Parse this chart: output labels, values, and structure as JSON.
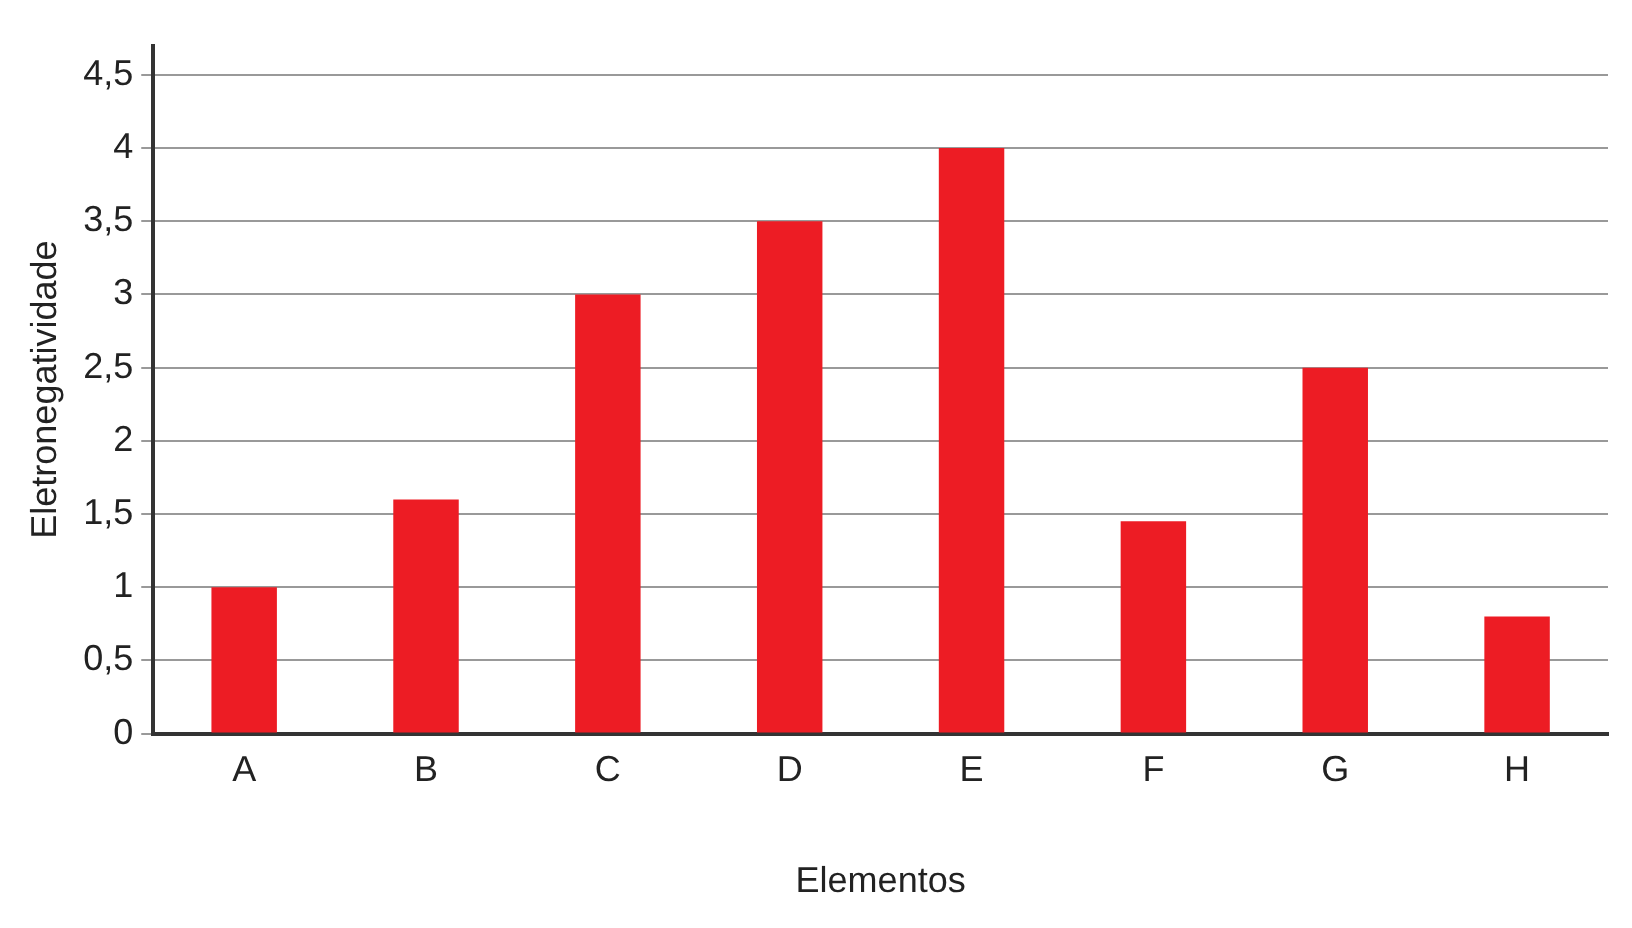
{
  "chart_data": {
    "type": "bar",
    "xlabel": "Elementos",
    "ylabel": "Eletronegatividade",
    "categories": [
      "A",
      "B",
      "C",
      "D",
      "E",
      "F",
      "G",
      "H"
    ],
    "values": [
      1,
      1.6,
      3,
      3.5,
      4,
      1.45,
      2.5,
      0.8
    ],
    "color": "#ed1c24",
    "ylim": [
      0,
      4.7
    ],
    "yticks": [
      0,
      {
        "value": 0.5,
        "label": "0,5"
      },
      1,
      {
        "value": 1.5,
        "label": "1,5"
      },
      2,
      {
        "value": 2.5,
        "label": "2,5"
      },
      3,
      {
        "value": 3.5,
        "label": "3,5"
      },
      4,
      {
        "value": 4.5,
        "label": "4,5"
      }
    ],
    "grid": "y",
    "legend": false
  }
}
